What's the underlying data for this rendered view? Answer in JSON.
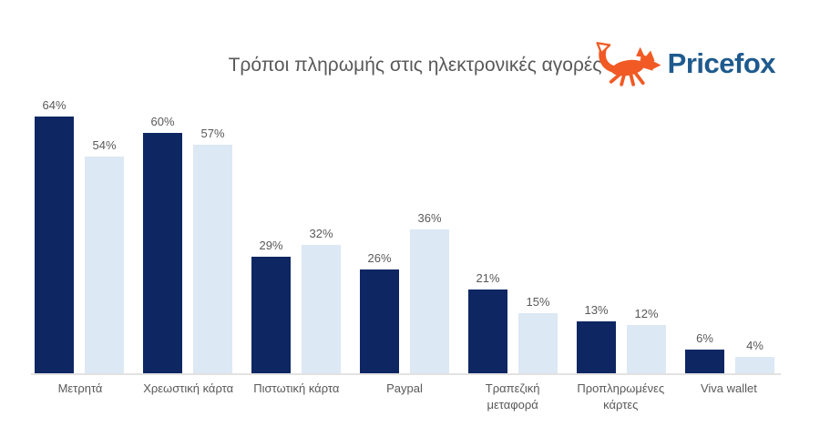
{
  "logo": {
    "text": "Pricefox",
    "fox_color": "#F15A24",
    "text_color": "#1E5A8E"
  },
  "chart_data": {
    "type": "bar",
    "title": "Τρόποι πληρωμής στις ηλεκτρονικές αγορές",
    "categories": [
      "Μετρητά",
      "Χρεωστική κάρτα",
      "Πιστωτική κάρτα",
      "Paypal",
      "Τραπεζική μεταφορά",
      "Προπληρωμένες κάρτες",
      "Viva wallet"
    ],
    "series": [
      {
        "name": "dark-navy",
        "color": "#0E2763",
        "values": [
          64,
          60,
          29,
          26,
          21,
          13,
          6
        ]
      },
      {
        "name": "light-blue",
        "color": "#DCE8F4",
        "values": [
          54,
          57,
          32,
          36,
          15,
          12,
          4
        ]
      }
    ],
    "value_suffix": "%",
    "ylim": [
      0,
      70
    ],
    "xlabel": "",
    "ylabel": "",
    "grid": false,
    "legend": "none",
    "value_label_color": "#595959",
    "category_label_color": "#595959"
  }
}
